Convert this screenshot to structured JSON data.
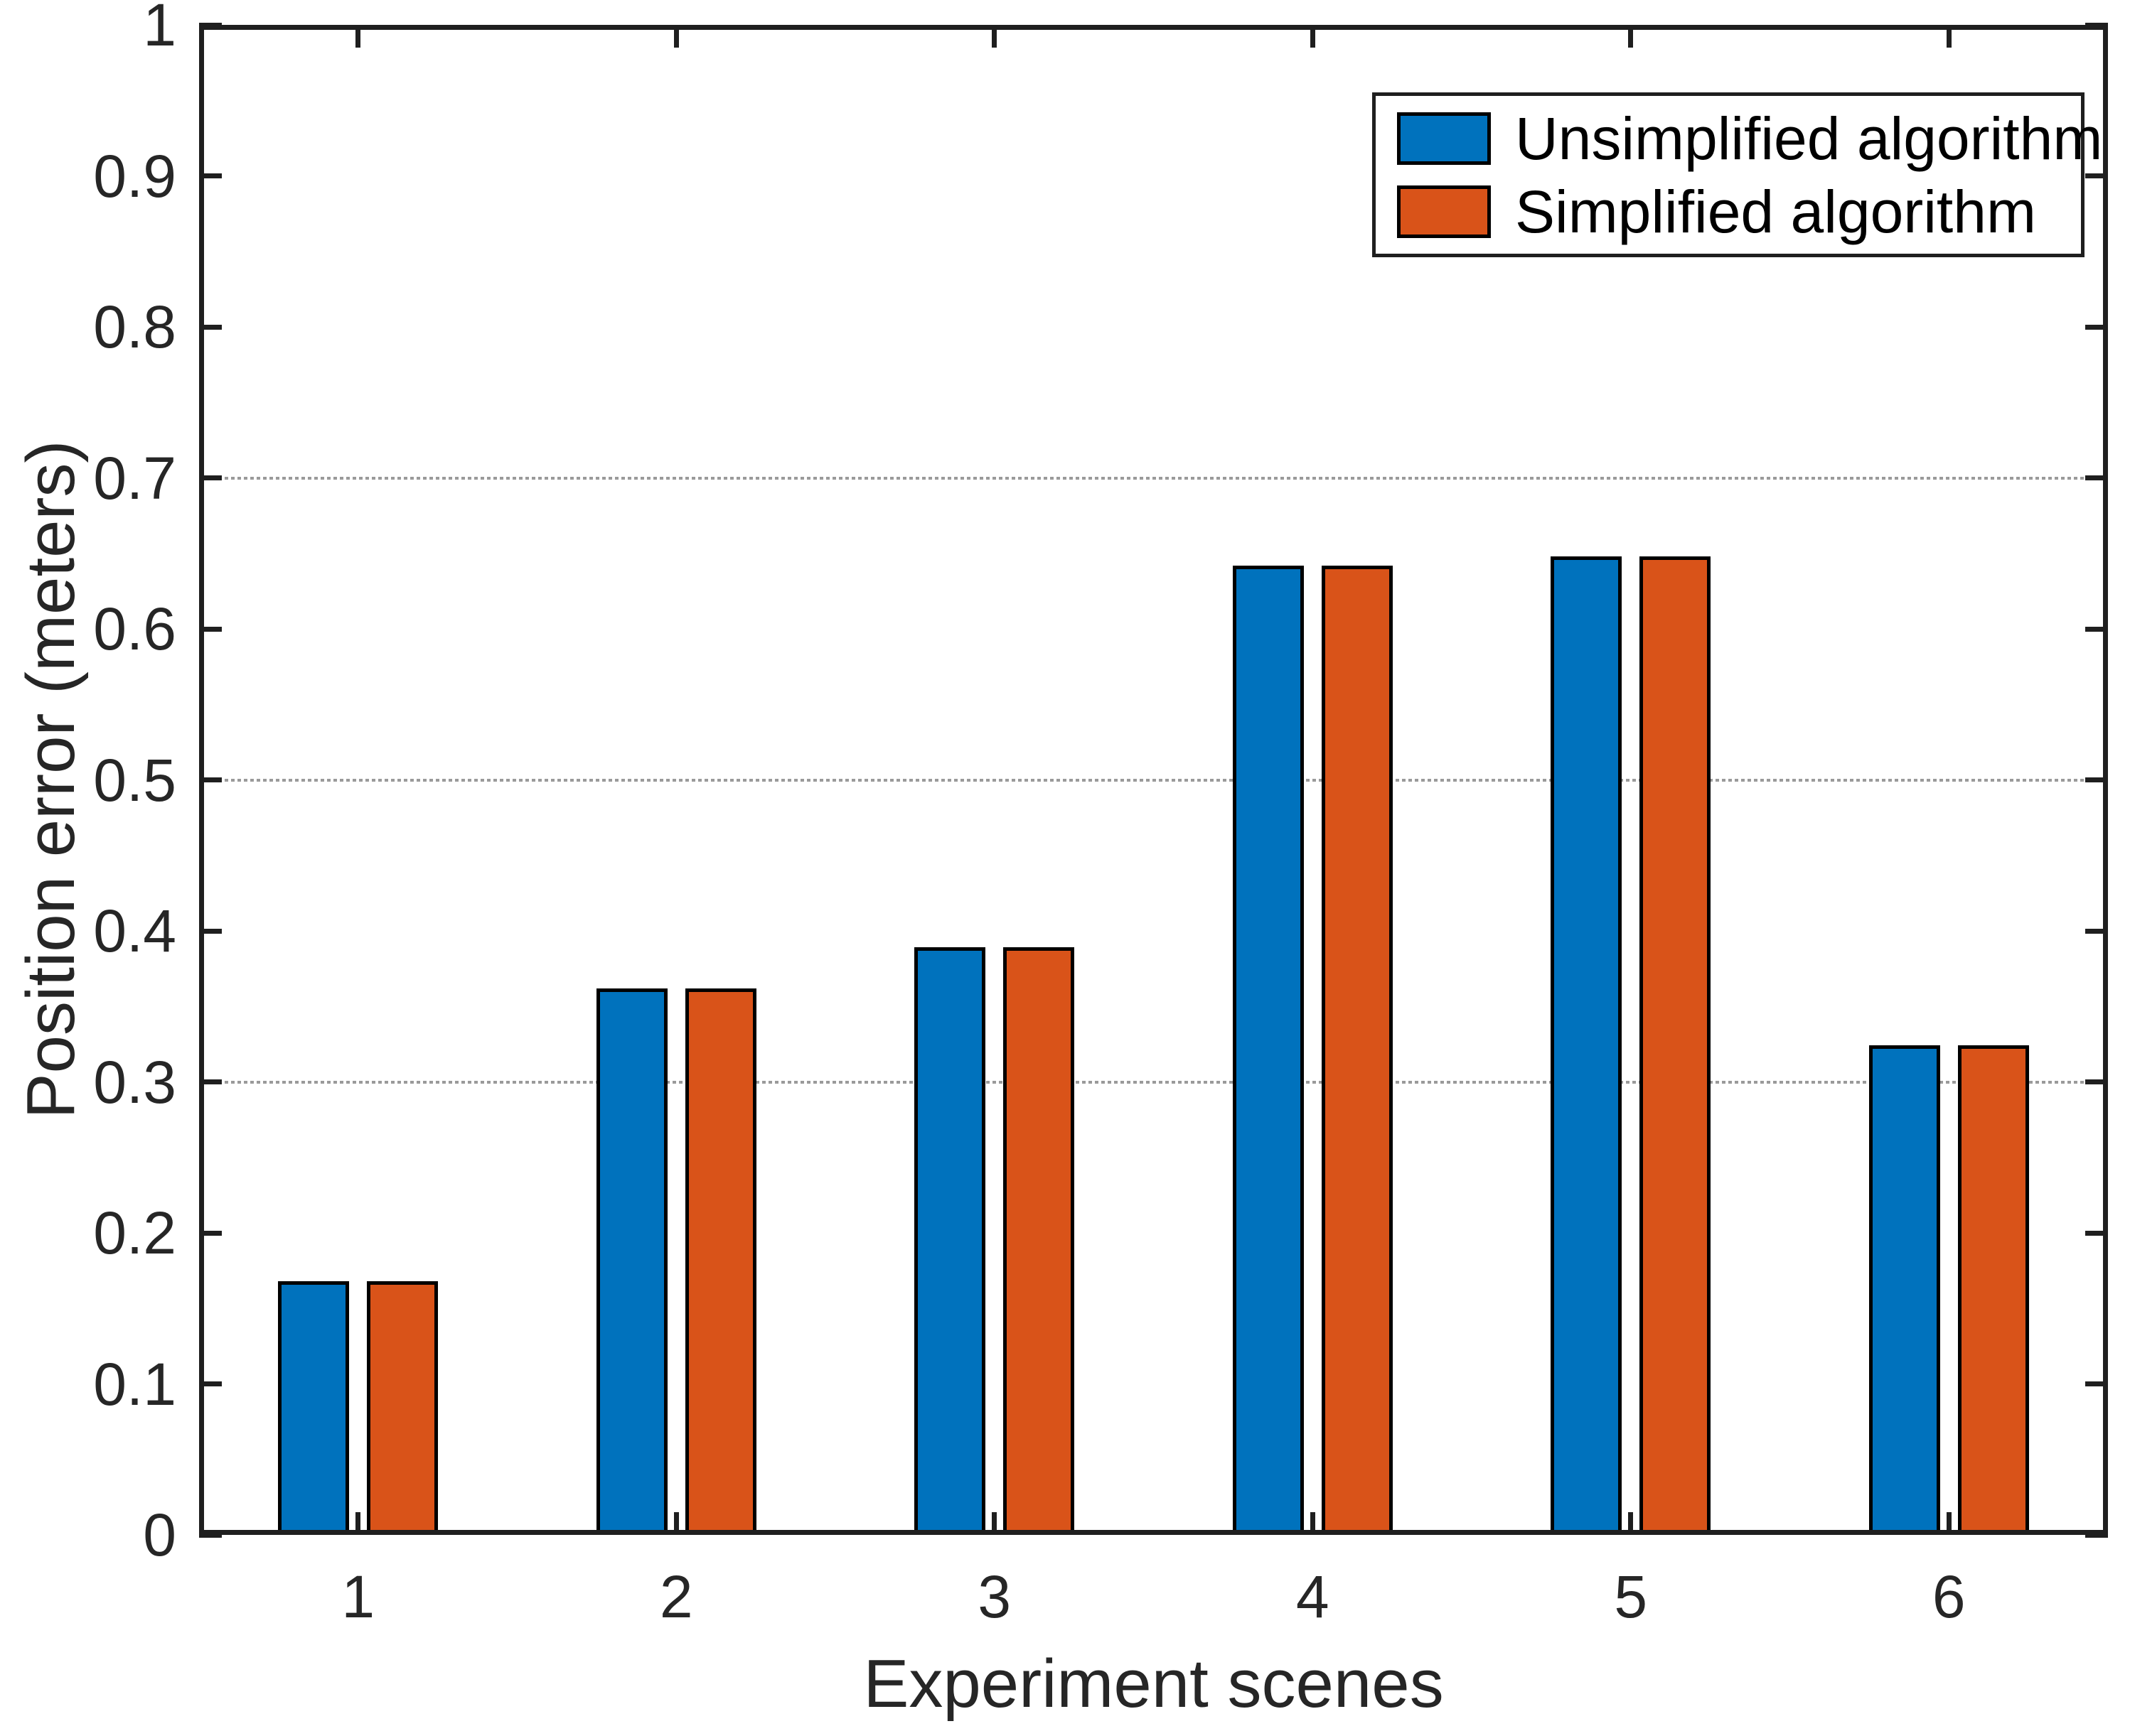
{
  "figure": {
    "background": "#ffffff"
  },
  "chart_data": {
    "type": "bar",
    "title": "",
    "xlabel": "Experiment scenes",
    "ylabel": "Position error (meters)",
    "categories": [
      "1",
      "2",
      "3",
      "4",
      "5",
      "6"
    ],
    "series": [
      {
        "name": "Unsimplified algorithm",
        "color": "#0072BD",
        "values": [
          0.168,
          0.362,
          0.389,
          0.642,
          0.648,
          0.324
        ]
      },
      {
        "name": "Simplified algorithm",
        "color": "#D95319",
        "values": [
          0.168,
          0.362,
          0.389,
          0.642,
          0.648,
          0.324
        ]
      }
    ],
    "ylim": [
      0,
      1
    ],
    "yticks": [
      0,
      0.1,
      0.2,
      0.3,
      0.4,
      0.5,
      0.6,
      0.7,
      0.8,
      0.9,
      1
    ],
    "ytick_labels": [
      "0",
      "0.1",
      "0.2",
      "0.3",
      "0.4",
      "0.5",
      "0.6",
      "0.7",
      "0.8",
      "0.9",
      "1"
    ],
    "gridlines_y": [
      0.3,
      0.5,
      0.7
    ],
    "grid_style": "dotted",
    "grid_color": "#9a9a9a",
    "axis_color": "#1f1f1f",
    "bar_edge_color": "#000000",
    "legend_position": "top-right",
    "legend_border_color": "#1f1f1f"
  }
}
